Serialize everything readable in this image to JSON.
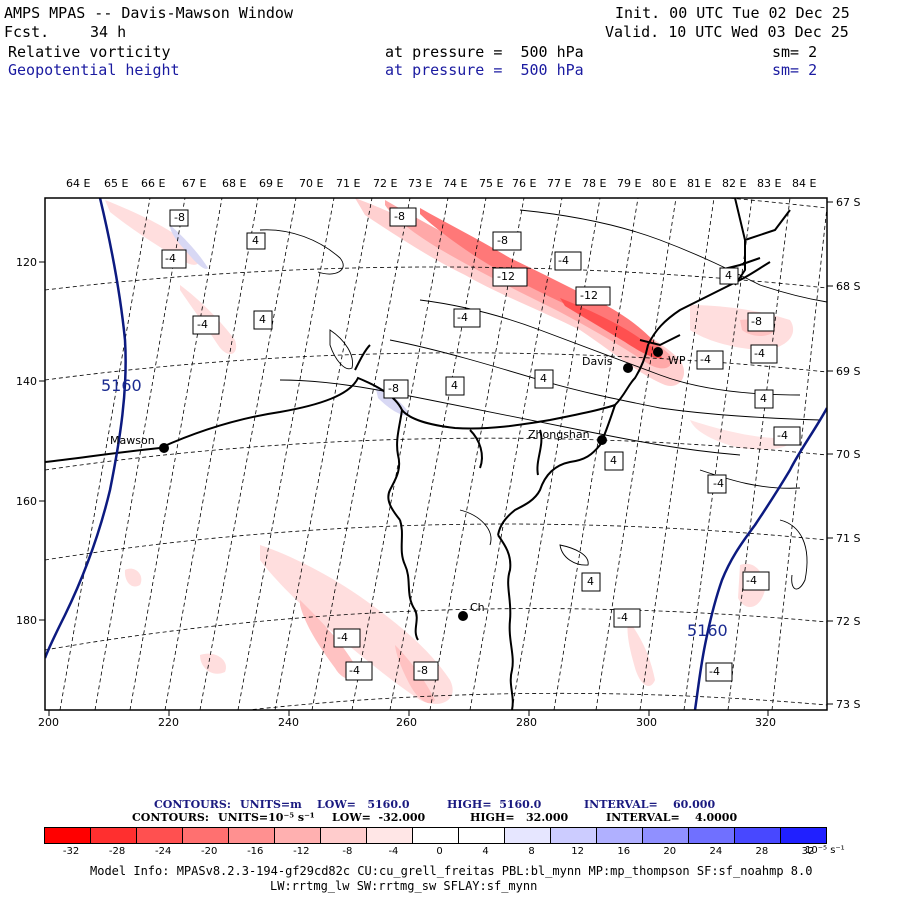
{
  "header": {
    "title": "AMPS MPAS -- Davis-Mawson Window",
    "fcst_label": "Fcst.",
    "fcst_value": "34 h",
    "init": "Init. 00 UTC Tue 02 Dec 25",
    "valid": "Valid. 10 UTC Wed 03 Dec 25",
    "field1": {
      "name": "Relative vorticity",
      "pressure": "at pressure =  500 hPa",
      "sm": "sm= 2"
    },
    "field2": {
      "name": "Geopotential height",
      "pressure": "at pressure =  500 hPa",
      "sm": "sm= 2"
    }
  },
  "axes": {
    "lon_top": [
      "64 E",
      "65 E",
      "66 E",
      "67 E",
      "68 E",
      "69 E",
      "70 E",
      "71 E",
      "72 E",
      "73 E",
      "74 E",
      "75 E",
      "76 E",
      "77 E",
      "78 E",
      "79 E",
      "80 E",
      "81 E",
      "82 E",
      "83 E",
      "84 E"
    ],
    "lat_right": [
      "67 S",
      "68 S",
      "69 S",
      "70 S",
      "71 S",
      "72 S",
      "73 S"
    ],
    "x_bottom": [
      "200",
      "220",
      "240",
      "260",
      "280",
      "300",
      "320"
    ],
    "y_left": [
      "120",
      "140",
      "160",
      "180"
    ]
  },
  "map": {
    "stations": [
      "Mawson",
      "Davis",
      "Zhongshan",
      "Ch",
      "WP"
    ],
    "height_contour_label": "5160",
    "vorticity_labels": [
      "-8",
      "-4",
      "4",
      "-4",
      "-4",
      "4",
      "4",
      "-8",
      "-8",
      "-4",
      "-12",
      "-12",
      "-4",
      "-8",
      "-4",
      "-4",
      "-8",
      "4",
      "4",
      "-4",
      "4",
      "-4",
      "4",
      "-4",
      "-4",
      "-4",
      "-4",
      "-4",
      "-8",
      "-4",
      "-4"
    ],
    "colors": {
      "negative_strong": "#ff3030",
      "negative_light": "#ffd6d6",
      "positive_light": "#c8c8f0",
      "coast": "#000000",
      "height_contour": "#0c1a80"
    }
  },
  "contour_info": {
    "line1": {
      "label": "CONTOURS:",
      "units": "UNITS=m",
      "low": "LOW=   5160.0",
      "high": "HIGH=  5160.0",
      "interval": "INTERVAL=    60.000"
    },
    "line2": {
      "label": "CONTOURS:",
      "units": "UNITS=10⁻⁵ s⁻¹",
      "low": "LOW=  -32.000",
      "high": "HIGH=   32.000",
      "interval": "INTERVAL=    4.0000"
    }
  },
  "colorbar": {
    "ticks": [
      "-32",
      "-28",
      "-24",
      "-20",
      "-16",
      "-12",
      "-8",
      "-4",
      "0",
      "4",
      "8",
      "12",
      "16",
      "20",
      "24",
      "28",
      "32"
    ],
    "unit": "10⁻⁵ s⁻¹",
    "colors": [
      "#ff0000",
      "#ff2f2f",
      "#ff5050",
      "#ff7070",
      "#ff9090",
      "#ffb0b0",
      "#ffcccc",
      "#ffe6e6",
      "#ffffff",
      "#ffffff",
      "#e6e6ff",
      "#ccccff",
      "#b0b0ff",
      "#9090ff",
      "#7070ff",
      "#4848ff",
      "#2020ff"
    ]
  },
  "footer": {
    "model_info": "Model Info: MPASv8.2.3-194-gf29cd82c CU:cu_grell_freitas PBL:bl_mynn MP:mp_thompson SF:sf_noahmp 8.0",
    "model_info2": "LW:rrtmg_lw SW:rrtmg_sw SFLAY:sf_mynn"
  }
}
